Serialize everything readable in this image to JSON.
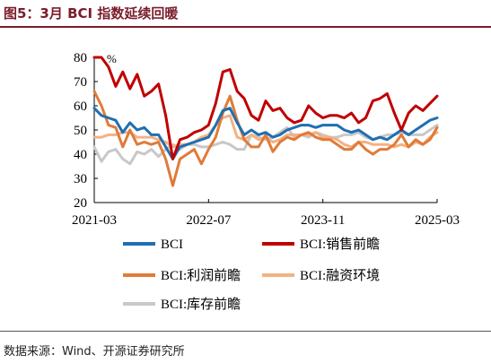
{
  "figure": {
    "title": "图5：3月 BCI 指数延续回暖",
    "source": "数据来源：Wind、开源证券研究所"
  },
  "chart_data": {
    "type": "line",
    "title": "",
    "ylabel": "",
    "unit_label": "%",
    "ylim": [
      20,
      80
    ],
    "yticks": [
      20,
      30,
      40,
      50,
      60,
      70,
      80
    ],
    "xtick_labels": [
      "2021-03",
      "2022-07",
      "2023-11",
      "2025-03"
    ],
    "xtick_index": [
      0,
      16,
      32,
      48
    ],
    "grid": false,
    "legend_position": "bottom",
    "x": [
      "2021-03",
      "2021-04",
      "2021-05",
      "2021-06",
      "2021-07",
      "2021-08",
      "2021-09",
      "2021-10",
      "2021-11",
      "2021-12",
      "2022-01",
      "2022-02",
      "2022-03",
      "2022-04",
      "2022-05",
      "2022-06",
      "2022-07",
      "2022-08",
      "2022-09",
      "2022-10",
      "2022-11",
      "2022-12",
      "2023-01",
      "2023-02",
      "2023-03",
      "2023-04",
      "2023-05",
      "2023-06",
      "2023-07",
      "2023-08",
      "2023-09",
      "2023-10",
      "2023-11",
      "2023-12",
      "2024-01",
      "2024-02",
      "2024-03",
      "2024-04",
      "2024-05",
      "2024-06",
      "2024-07",
      "2024-08",
      "2024-09",
      "2024-10",
      "2024-11",
      "2024-12",
      "2025-01",
      "2025-02",
      "2025-03"
    ],
    "series": [
      {
        "name": "BCI",
        "color": "#1f6fb2",
        "values": [
          59,
          56,
          55,
          54,
          49,
          53,
          50,
          51,
          48,
          48,
          43,
          38,
          43,
          44,
          45,
          46,
          47,
          52,
          58,
          59,
          53,
          48,
          50,
          48,
          49,
          47,
          48,
          50,
          51,
          52,
          52,
          51,
          52,
          52,
          52,
          50,
          49,
          50,
          48,
          46,
          47,
          46,
          48,
          50,
          48,
          50,
          52,
          54,
          55
        ]
      },
      {
        "name": "BCI:销售前瞻",
        "color": "#c00000",
        "values": [
          80,
          80,
          76,
          68,
          74,
          67,
          73,
          64,
          66,
          69,
          56,
          38,
          46,
          47,
          49,
          50,
          52,
          61,
          74,
          75,
          66,
          63,
          56,
          54,
          62,
          58,
          59,
          55,
          53,
          54,
          60,
          57,
          55,
          56,
          56,
          55,
          57,
          53,
          55,
          62,
          63,
          65,
          57,
          50,
          57,
          60,
          58,
          61,
          64
        ]
      },
      {
        "name": "BCI:利润前瞻",
        "color": "#e07b39",
        "values": [
          66,
          60,
          52,
          51,
          43,
          50,
          44,
          45,
          44,
          45,
          38,
          27,
          38,
          40,
          42,
          36,
          42,
          47,
          57,
          64,
          54,
          46,
          43,
          43,
          48,
          41,
          45,
          47,
          46,
          48,
          49,
          47,
          46,
          46,
          44,
          42,
          42,
          45,
          42,
          40,
          42,
          42,
          44,
          48,
          43,
          46,
          44,
          46,
          51
        ]
      },
      {
        "name": "BCI:融资环境",
        "color": "#f4b183",
        "values": [
          47,
          47,
          48,
          48,
          49,
          49,
          47,
          47,
          47,
          46,
          45,
          43,
          44,
          44,
          45,
          47,
          48,
          52,
          55,
          56,
          47,
          46,
          48,
          46,
          47,
          45,
          46,
          48,
          48,
          48,
          48,
          49,
          47,
          47,
          46,
          44,
          43,
          45,
          45,
          44,
          44,
          44,
          43,
          44,
          43,
          45,
          44,
          47,
          49
        ]
      },
      {
        "name": "BCI:库存前瞻",
        "color": "#c8c8c8",
        "values": [
          43,
          37,
          41,
          42,
          38,
          36,
          41,
          40,
          42,
          39,
          42,
          44,
          42,
          44,
          44,
          43,
          43,
          44,
          45,
          44,
          42,
          42,
          48,
          47,
          46,
          47,
          49,
          51,
          47,
          48,
          47,
          49,
          48,
          47,
          47,
          48,
          48,
          49,
          47,
          46,
          47,
          48,
          48,
          49,
          48,
          48,
          48,
          50,
          52
        ]
      }
    ]
  }
}
